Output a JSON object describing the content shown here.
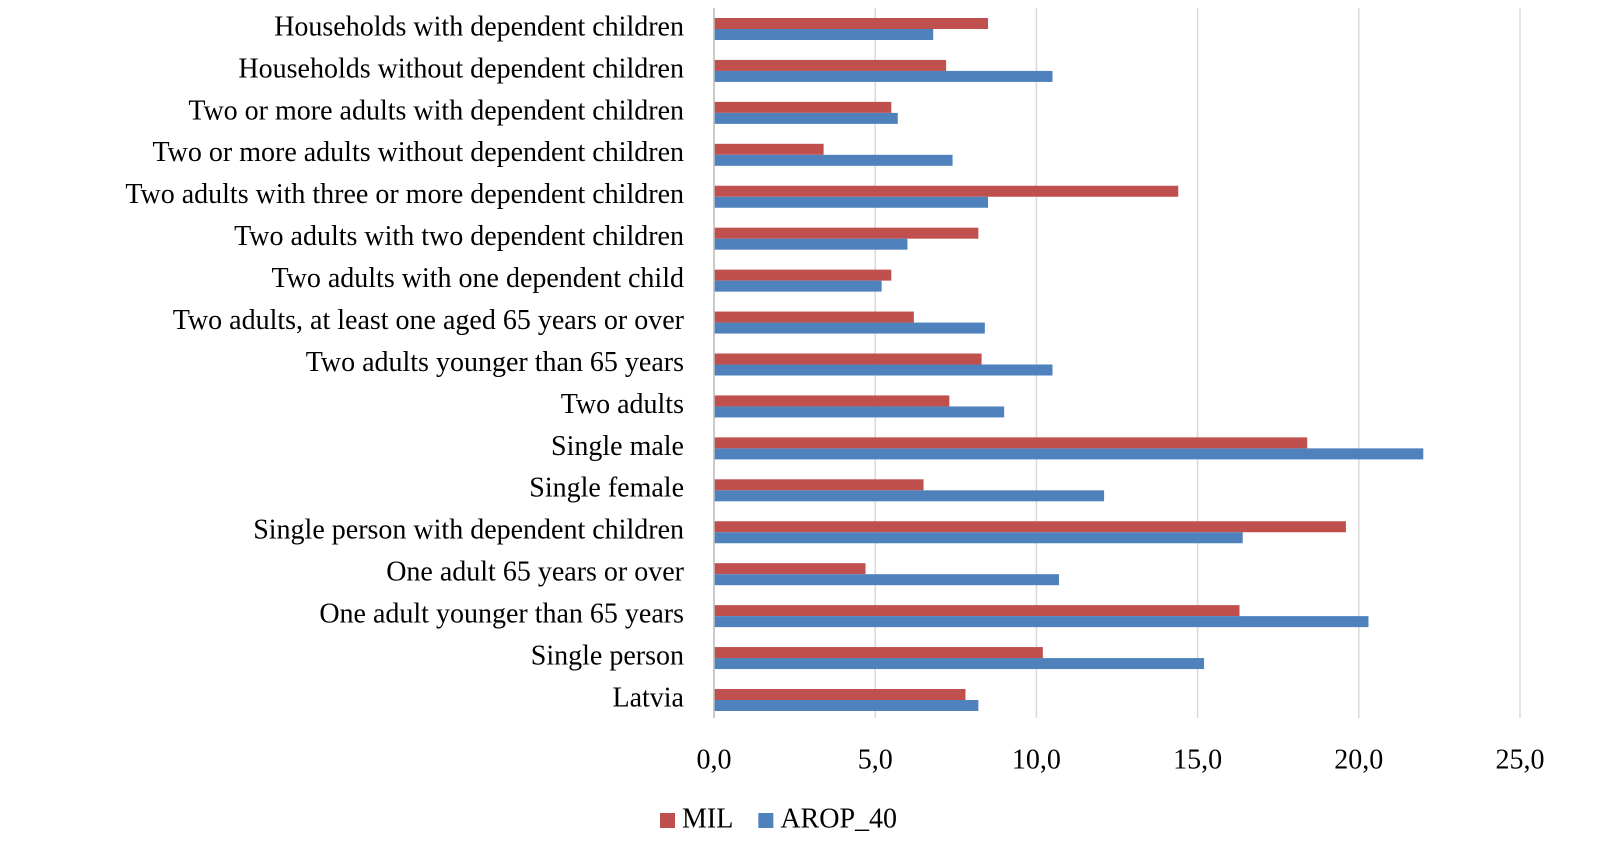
{
  "chart_data": {
    "type": "hbar",
    "categories": [
      "Households with dependent children",
      "Households without dependent children",
      "Two or more adults with dependent children",
      "Two or more adults without dependent children",
      "Two adults with three or more dependent children",
      "Two adults with two dependent children",
      "Two adults with one dependent child",
      "Two adults, at least one aged 65 years or over",
      "Two adults younger than 65 years",
      "Two adults",
      "Single male",
      "Single female",
      "Single person with dependent children",
      "One adult 65 years or over",
      "One adult younger than 65 years",
      "Single person",
      "Latvia"
    ],
    "series": [
      {
        "name": "MIL",
        "color": "#c0504d",
        "values": [
          8.5,
          7.2,
          5.5,
          3.4,
          14.4,
          8.2,
          5.5,
          6.2,
          8.3,
          7.3,
          18.4,
          6.5,
          19.6,
          4.7,
          16.3,
          10.2,
          7.8
        ]
      },
      {
        "name": "AROP_40",
        "color": "#4f81bd",
        "values": [
          6.8,
          10.5,
          5.7,
          7.4,
          8.5,
          6.0,
          5.2,
          8.4,
          10.5,
          9.0,
          22.0,
          12.1,
          16.4,
          10.7,
          20.3,
          15.2,
          8.2
        ]
      }
    ],
    "xlim": [
      0,
      25
    ],
    "xticks": [
      {
        "value": 0,
        "label": "0,0"
      },
      {
        "value": 5,
        "label": "5,0"
      },
      {
        "value": 10,
        "label": "10,0"
      },
      {
        "value": 15,
        "label": "15,0"
      },
      {
        "value": 20,
        "label": "20,0"
      },
      {
        "value": 25,
        "label": "25,0"
      }
    ],
    "grid": true,
    "legend": "bottom"
  }
}
